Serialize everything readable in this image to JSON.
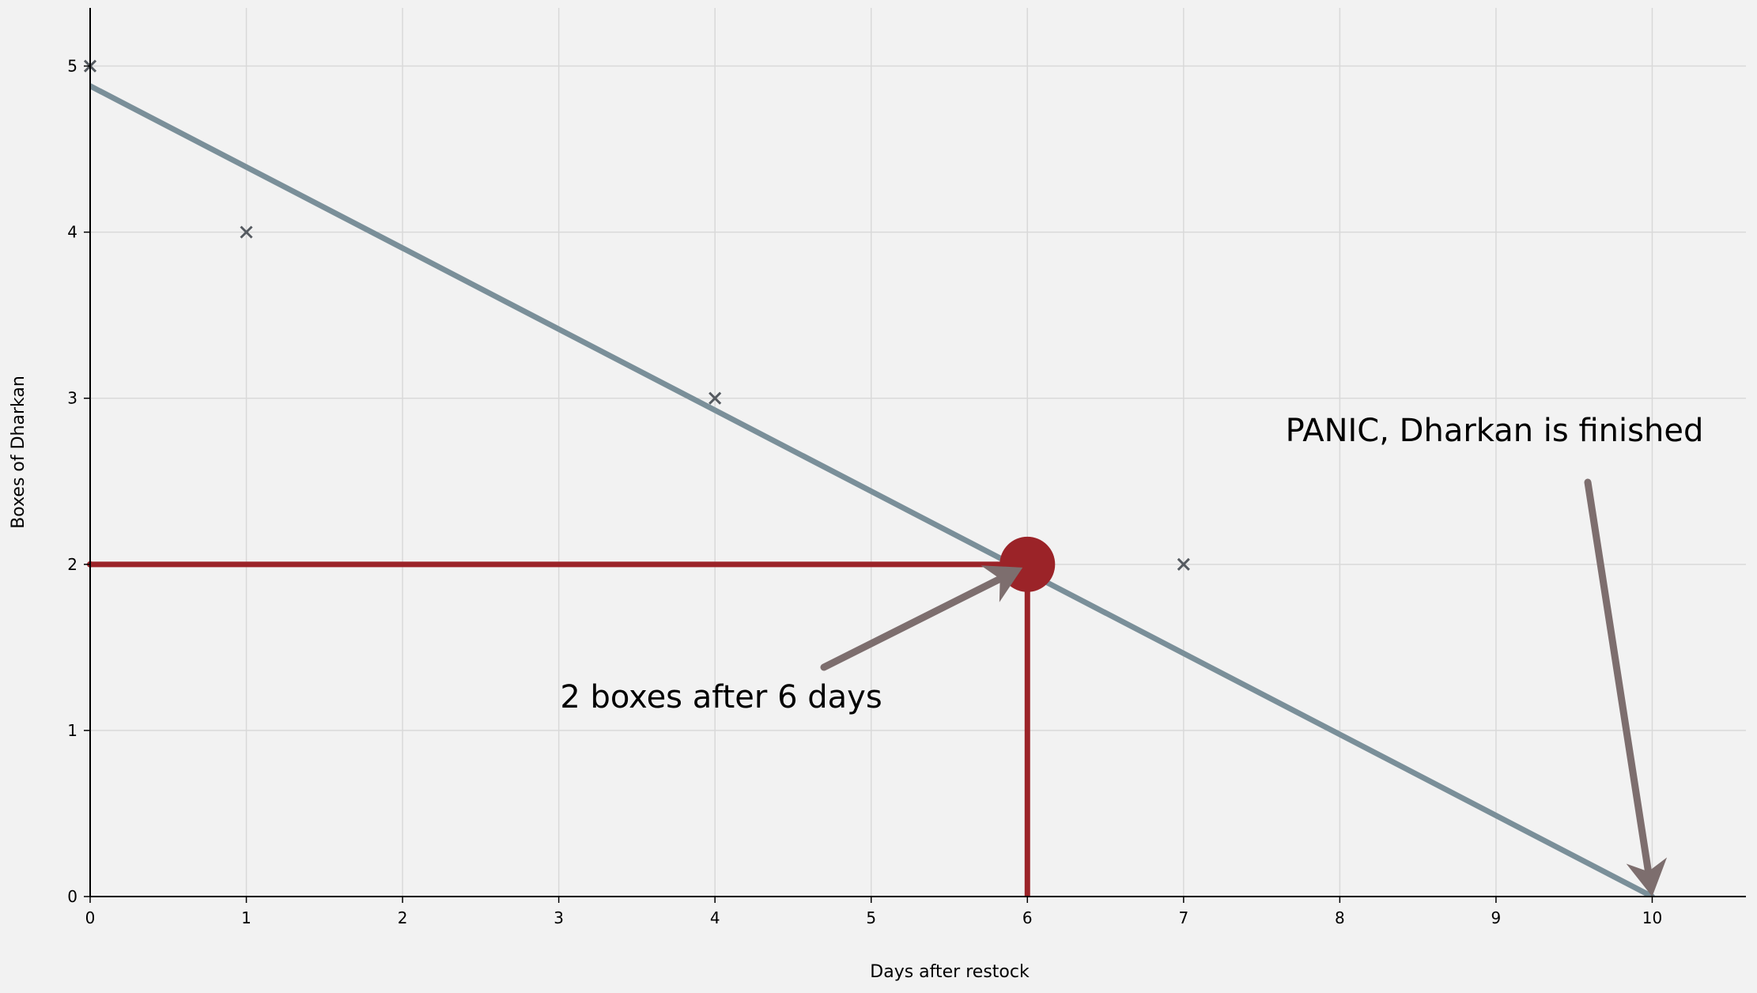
{
  "chart_data": {
    "type": "scatter",
    "title": "",
    "xlabel": "Days after restock",
    "ylabel": "Boxes of Dharkan",
    "xlim": [
      0,
      10.6
    ],
    "ylim": [
      0,
      5.35
    ],
    "grid": true,
    "x_ticks": [
      "0",
      "1",
      "2",
      "3",
      "4",
      "5",
      "6",
      "7",
      "8",
      "9",
      "10"
    ],
    "y_ticks": [
      "0",
      "1",
      "2",
      "3",
      "4",
      "5"
    ],
    "points": [
      {
        "x": 0,
        "y": 5
      },
      {
        "x": 1,
        "y": 4
      },
      {
        "x": 4,
        "y": 3
      },
      {
        "x": 7,
        "y": 2
      }
    ],
    "trend_line": {
      "x": [
        0,
        10
      ],
      "y": [
        4.88,
        0
      ]
    },
    "highlight": {
      "x": 6,
      "y": 2
    },
    "annotations": [
      {
        "text": "2 boxes after 6 days",
        "target": {
          "x": 6,
          "y": 2
        }
      },
      {
        "text": "PANIC, Dharkan is finished",
        "target": {
          "x": 10,
          "y": 0
        }
      }
    ],
    "colors": {
      "background": "#f2f2f2",
      "grid": "#d9d9d9",
      "trend": "#7a8f99",
      "marker": "#555a60",
      "highlight": "#9b2328",
      "arrow": "#7d6e6e"
    }
  }
}
